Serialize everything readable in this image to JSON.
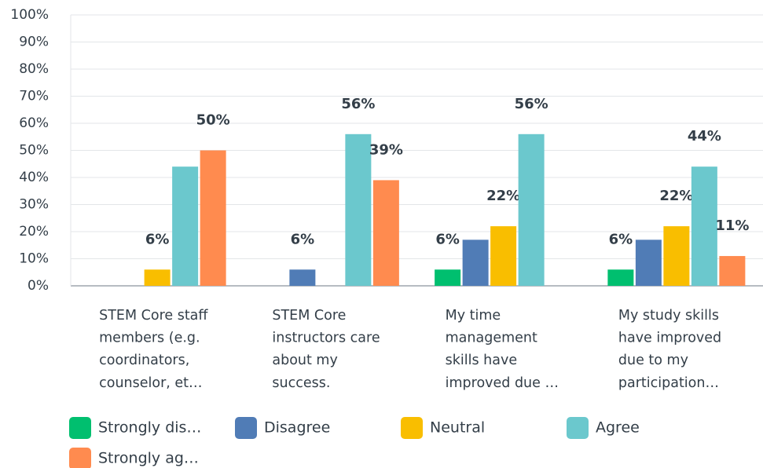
{
  "chart_data": {
    "type": "bar",
    "categories": [
      [
        "STEM Core staff",
        "members (e.g.",
        "coordinators,",
        "counselor, et…"
      ],
      [
        "STEM Core",
        "instructors care",
        "about my",
        "success."
      ],
      [
        "My time",
        "management",
        "skills have",
        "improved due …"
      ],
      [
        "My study skills",
        "have improved",
        "due to my",
        "participation…"
      ]
    ],
    "series": [
      {
        "name": "Strongly dis…",
        "color": "#00bf6f",
        "values": [
          0,
          0,
          6,
          6
        ],
        "value_labels": [
          null,
          null,
          "6%",
          "6%"
        ]
      },
      {
        "name": "Disagree",
        "color": "#507cb6",
        "values": [
          0,
          6,
          17,
          17
        ],
        "value_labels": [
          null,
          "6%",
          null,
          null
        ]
      },
      {
        "name": "Neutral",
        "color": "#f9be00",
        "values": [
          6,
          0,
          22,
          22
        ],
        "value_labels": [
          "6%",
          null,
          "22%",
          "22%"
        ]
      },
      {
        "name": "Agree",
        "color": "#6bc8cd",
        "values": [
          44,
          56,
          56,
          44
        ],
        "value_labels": [
          null,
          "56%",
          "56%",
          "44%"
        ]
      },
      {
        "name": "Strongly ag…",
        "color": "#ff8b4f",
        "values": [
          50,
          39,
          0,
          11
        ],
        "value_labels": [
          "50%",
          "39%",
          null,
          "11%"
        ]
      }
    ],
    "ylim": [
      0,
      100
    ],
    "yticks": [
      {
        "value": 0,
        "label": "0%"
      },
      {
        "value": 10,
        "label": "10%"
      },
      {
        "value": 20,
        "label": "20%"
      },
      {
        "value": 30,
        "label": "30%"
      },
      {
        "value": 40,
        "label": "40%"
      },
      {
        "value": 50,
        "label": "50%"
      },
      {
        "value": 60,
        "label": "60%"
      },
      {
        "value": 70,
        "label": "70%"
      },
      {
        "value": 80,
        "label": "80%"
      },
      {
        "value": 90,
        "label": "90%"
      },
      {
        "value": 100,
        "label": "100%"
      }
    ],
    "grid": true
  }
}
